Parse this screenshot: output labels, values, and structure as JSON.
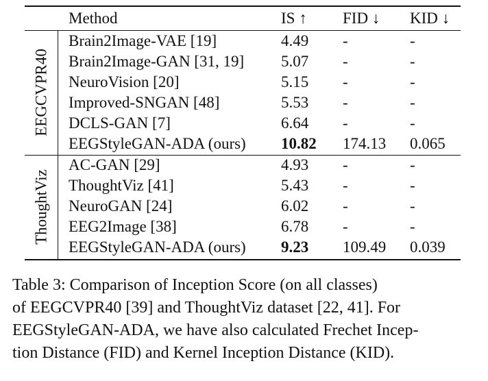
{
  "table": {
    "headers": {
      "method": "Method",
      "is": "IS ↑",
      "fid": "FID ↓",
      "kid": "KID ↓"
    },
    "groups": [
      {
        "label": "EEGCVPR40",
        "rows": [
          {
            "method": "Brain2Image-VAE [19]",
            "is": "4.49",
            "fid": "-",
            "kid": "-"
          },
          {
            "method": "Brain2Image-GAN [31, 19]",
            "is": "5.07",
            "fid": "-",
            "kid": "-"
          },
          {
            "method": "NeuroVision [20]",
            "is": "5.15",
            "fid": "-",
            "kid": "-"
          },
          {
            "method": "Improved-SNGAN [48]",
            "is": "5.53",
            "fid": "-",
            "kid": "-"
          },
          {
            "method": "DCLS-GAN [7]",
            "is": "6.64",
            "fid": "-",
            "kid": "-"
          },
          {
            "method": "EEGStyleGAN-ADA (ours)",
            "is": "10.82",
            "fid": "174.13",
            "kid": "0.065"
          }
        ]
      },
      {
        "label": "ThoughtViz",
        "rows": [
          {
            "method": "AC-GAN [29]",
            "is": "4.93",
            "fid": "-",
            "kid": "-"
          },
          {
            "method": "ThoughtViz [41]",
            "is": "5.43",
            "fid": "-",
            "kid": "-"
          },
          {
            "method": "NeuroGAN [24]",
            "is": "6.02",
            "fid": "-",
            "kid": "-"
          },
          {
            "method": "EEG2Image [38]",
            "is": "6.78",
            "fid": "-",
            "kid": "-"
          },
          {
            "method": "EEGStyleGAN-ADA (ours)",
            "is": "9.23",
            "fid": "109.49",
            "kid": "0.039"
          }
        ]
      }
    ]
  },
  "caption": {
    "lines": [
      "Table 3:  Comparison of Inception Score (on all classes)",
      "of EEGCVPR40 [39] and ThoughtViz dataset [22, 41]. For",
      "EEGStyleGAN-ADA, we have also calculated Frechet Incep-",
      "tion Distance (FID) and Kernel Inception Distance (KID)."
    ]
  }
}
